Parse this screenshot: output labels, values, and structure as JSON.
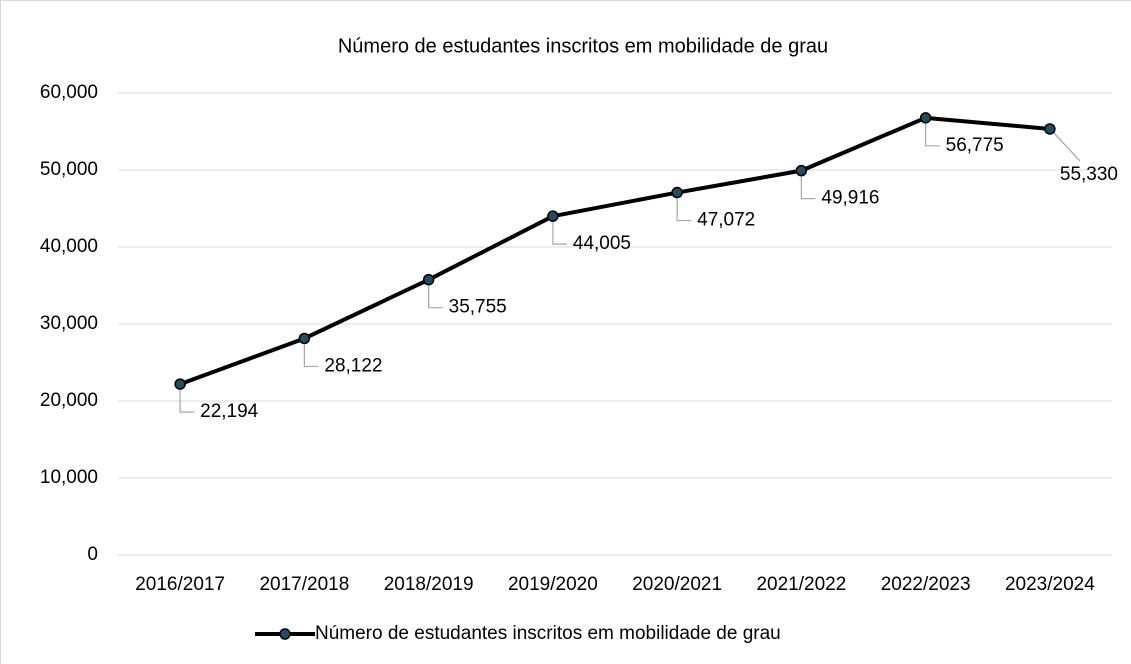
{
  "chart_data": {
    "type": "line",
    "title": "Número de estudantes inscritos em mobilidade de grau",
    "categories": [
      "2016/2017",
      "2017/2018",
      "2018/2019",
      "2019/2020",
      "2020/2021",
      "2021/2022",
      "2022/2023",
      "2023/2024"
    ],
    "series": [
      {
        "name": "Número de estudantes inscritos em mobilidade de grau",
        "color": "#000000",
        "marker_color": "#1f4e63",
        "values": [
          22194,
          28122,
          35755,
          44005,
          47072,
          49916,
          56775,
          55330
        ],
        "value_labels": [
          "22,194",
          "28,122",
          "35,755",
          "44,005",
          "47,072",
          "49,916",
          "56,775",
          "55,330"
        ]
      }
    ],
    "ylim": [
      0,
      60000
    ],
    "yticks": [
      0,
      {
        "value": 10000,
        "label": "10,000"
      },
      {
        "value": 20000,
        "label": "20,000"
      },
      {
        "value": 30000,
        "label": "30,000"
      },
      {
        "value": 40000,
        "label": "40,000"
      },
      {
        "value": 50000,
        "label": "50,000"
      },
      {
        "value": 60000,
        "label": "60,000"
      }
    ],
    "grid": true,
    "legend": "bottom"
  }
}
